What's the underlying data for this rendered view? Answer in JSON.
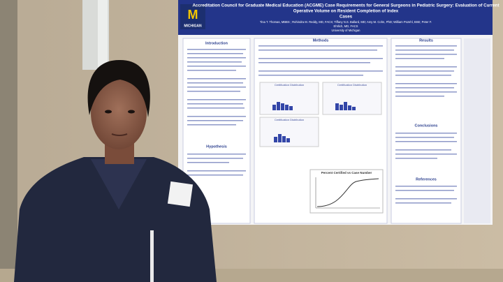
{
  "poster": {
    "logo": "MICHIGAN",
    "title_lines": [
      "Accreditation Council for Graduate Medical Education (ACGME) Case Requirements for General Surgeons in Pediatric Surgery: Evaluation of Current",
      "Operative Volume on Resident Completion of Index",
      "Cases"
    ],
    "author_lines": [
      "Tina T. Thomas, MBBS ; Rohindra M. Reddy, MD, FACS; Tiffany N.S. Ballard, MD; Amy M. Cohn, PhD; William Pozehl, BSE; Peter F.",
      "Ehrlich, MD, FACS"
    ],
    "affiliation": "University of Michigan",
    "sections": [
      "Introduction",
      "Hypothesis",
      "Methods",
      "Results",
      "Conclusions",
      "References"
    ],
    "mini_chart_titles": [
      "Certification Distribution",
      "Certification Distribution",
      "Certification Distribution"
    ],
    "curve_chart_title": "Percent Certified vs Case Number"
  }
}
